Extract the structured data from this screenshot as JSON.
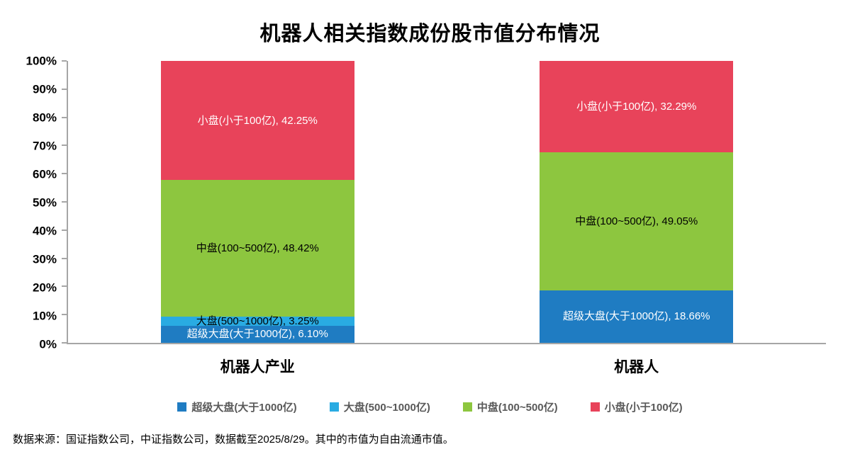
{
  "title": "机器人相关指数成份股市值分布情况",
  "footer": "数据来源：国证指数公司，中证指数公司，数据截至2025/8/29。其中的市值为自由流通市值。",
  "chart_data": {
    "type": "bar",
    "subtype": "stacked-percent",
    "title": "机器人相关指数成份股市值分布情况",
    "categories": [
      "机器人产业",
      "机器人"
    ],
    "series": [
      {
        "name": "超级大盘(大于1000亿)",
        "color": "#1f7cc2",
        "text_color": "#ffffff",
        "values": [
          6.1,
          18.66
        ],
        "data_labels": [
          "超级大盘(大于1000亿), 6.10%",
          "超级大盘(大于1000亿), 18.66%"
        ]
      },
      {
        "name": "大盘(500~1000亿)",
        "color": "#29abe2",
        "text_color": "#000000",
        "values": [
          3.25,
          0
        ],
        "data_labels": [
          "大盘(500~1000亿), 3.25%",
          ""
        ]
      },
      {
        "name": "中盘(100~500亿)",
        "color": "#8dc63f",
        "text_color": "#000000",
        "values": [
          48.42,
          49.05
        ],
        "data_labels": [
          "中盘(100~500亿), 48.42%",
          "中盘(100~500亿), 49.05%"
        ]
      },
      {
        "name": "小盘(小于100亿)",
        "color": "#e8435a",
        "text_color": "#ffffff",
        "values": [
          42.25,
          32.29
        ],
        "data_labels": [
          "小盘(小于100亿), 42.25%",
          "小盘(小于100亿), 32.29%"
        ]
      }
    ],
    "xlabel": "",
    "ylabel": "",
    "ylim": [
      0,
      100
    ],
    "ytick_step": 10,
    "ytick_labels": [
      "0%",
      "10%",
      "20%",
      "30%",
      "40%",
      "50%",
      "60%",
      "70%",
      "80%",
      "90%",
      "100%"
    ],
    "legend": [
      "超级大盘(大于1000亿)",
      "大盘(500~1000亿)",
      "中盘(100~500亿)",
      "小盘(小于100亿)"
    ],
    "legend_position": "bottom",
    "grid": false
  }
}
